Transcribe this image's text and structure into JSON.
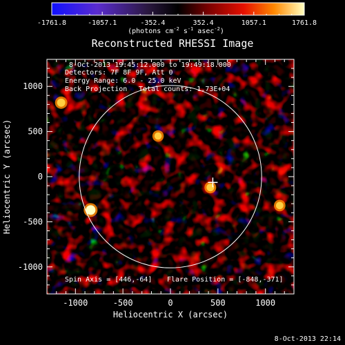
{
  "chart_data": {
    "type": "heatmap",
    "title": "Reconstructed RHESSI Image",
    "xlabel": "Heliocentric X (arcsec)",
    "ylabel": "Heliocentric Y (arcsec)",
    "xlim": [
      -1300,
      1300
    ],
    "ylim": [
      -1300,
      1300
    ],
    "xticks": [
      -1000,
      -500,
      0,
      500,
      1000
    ],
    "yticks": [
      -1000,
      -500,
      0,
      500,
      1000
    ],
    "colorbar": {
      "range": [
        -1761.8,
        1761.8
      ],
      "ticks": [
        "-1761.8",
        "-1057.1",
        "-352.4",
        "352.4",
        "1057.1",
        "1761.8"
      ],
      "unit_label": "(photons cm",
      "unit_exp1": "-2",
      "unit_mid": " s",
      "unit_exp2": "-1",
      "unit_end": " asec",
      "unit_exp3": "-2",
      "unit_close": ")",
      "colors": [
        "#1010ff",
        "#5a2ccf",
        "#2a1840",
        "#000000",
        "#7a0000",
        "#e61000",
        "#ff8800",
        "#ffffc0"
      ]
    },
    "solar_limb_radius_arcsec": 960,
    "flare_marker": [
      446,
      -64
    ],
    "annotations": {
      "time": "8-Oct-2013 19:45:12.000 to 19:49:18.000",
      "detectors": "Detectors: 7F 8F 9F, Att 0",
      "energy": "Energy Range: 6.0 - 25.0 keV",
      "method": "Back Projection",
      "counts": "Total counts: 1.73E+04",
      "spin_axis": "Spin Axis = [446,-64]",
      "flare_position": "Flare Position = [-848,-371]"
    },
    "bright_spots": [
      {
        "x": -840,
        "y": -370,
        "v": 1761.8
      },
      {
        "x": -1150,
        "y": 820,
        "v": 1300
      },
      {
        "x": 420,
        "y": -120,
        "v": 1100
      },
      {
        "x": 1150,
        "y": -320,
        "v": 1050
      },
      {
        "x": -130,
        "y": 450,
        "v": 1000
      }
    ]
  },
  "footer_timestamp": "8-Oct-2013 22:14"
}
